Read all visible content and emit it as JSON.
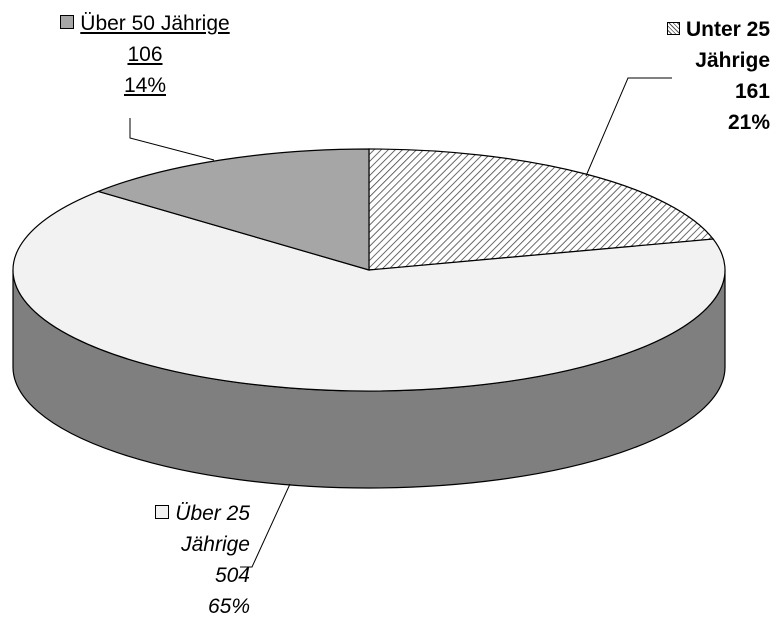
{
  "chart_data": {
    "type": "pie",
    "style": "3d",
    "title": "",
    "slices": [
      {
        "name": "Unter 25 Jährige",
        "value": 161,
        "percent": "21%",
        "color": "#ffffff",
        "pattern": "diagonal-hatch"
      },
      {
        "name": "Über 25 Jährige",
        "value": 504,
        "percent": "65%",
        "color": "#f2f2f2",
        "pattern": "solid"
      },
      {
        "name": "Über 50 Jährige",
        "value": 106,
        "percent": "14%",
        "color": "#a6a6a6",
        "pattern": "solid"
      }
    ],
    "labels": {
      "ueber50": {
        "name": "Über 50 Jährige",
        "value": "106",
        "percent": "14%"
      },
      "unter25": {
        "name_line1": "Unter 25",
        "name_line2": "Jährige",
        "value": "161",
        "percent": "21%"
      },
      "ueber25": {
        "name_line1": "Über 25",
        "name_line2": "Jährige",
        "value": "504",
        "percent": "65%"
      }
    },
    "side_color": "#7f7f7f",
    "outline_color": "#000000"
  }
}
